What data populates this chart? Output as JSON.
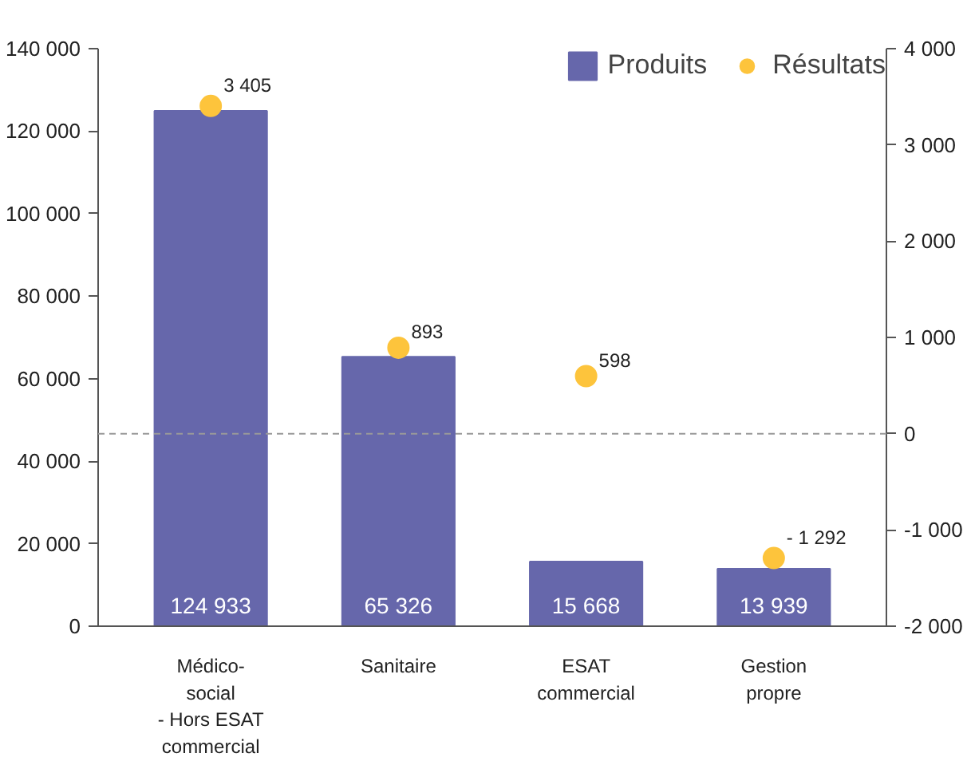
{
  "chart_data": {
    "type": "bar",
    "categories": [
      "Médico-\nsocial\n- Hors ESAT\ncommercial",
      "Sanitaire",
      "ESAT\ncommercial",
      "Gestion\npropre"
    ],
    "series": [
      {
        "name": "Produits",
        "color": "#6667ab",
        "values": [
          124933,
          65326,
          15668,
          13939
        ],
        "value_labels": [
          "124 933",
          "65 326",
          "15 668",
          "13 939"
        ]
      },
      {
        "name": "Résultats",
        "type": "scatter",
        "axis": "y2",
        "color": "#fdc43c",
        "values": [
          3405,
          893,
          598,
          -1292
        ],
        "value_labels": [
          "3 405",
          "893",
          "598",
          "- 1 292"
        ]
      }
    ],
    "ylim": [
      0,
      140000
    ],
    "yticks": [
      {
        "value": 0,
        "label": "0"
      },
      {
        "value": 20000,
        "label": "20 000"
      },
      {
        "value": 40000,
        "label": "40 000"
      },
      {
        "value": 60000,
        "label": "60 000"
      },
      {
        "value": 80000,
        "label": "80 000"
      },
      {
        "value": 100000,
        "label": "100 000"
      },
      {
        "value": 120000,
        "label": "120 000"
      },
      {
        "value": 140000,
        "label": "140 000"
      }
    ],
    "y2lim": [
      -2000,
      4000
    ],
    "y2ticks": [
      {
        "value": -2000,
        "label": "-2 000"
      },
      {
        "value": -1000,
        "label": "-1 000"
      },
      0,
      {
        "value": 1000,
        "label": "1 000"
      },
      {
        "value": 2000,
        "label": "2 000"
      },
      {
        "value": 3000,
        "label": "3 000"
      },
      {
        "value": 4000,
        "label": "4 000"
      }
    ],
    "ref_lines": [
      {
        "axis": "y2",
        "value": 0,
        "color": "#999999",
        "line_style": "dashed"
      }
    ],
    "marker": "circle",
    "grid": false,
    "legend": "top right"
  }
}
